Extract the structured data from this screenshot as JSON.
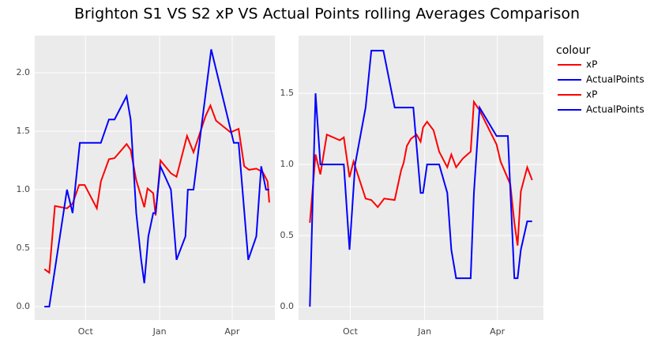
{
  "title": "Brighton S1 VS S2 xP VS Actual Points rolling Averages Comparison",
  "legend_title": "colour",
  "chart_data": [
    {
      "type": "line",
      "xlim": [
        -2,
        296
      ],
      "ylim": [
        -0.115,
        2.318
      ],
      "xticks": [
        {
          "value": 61,
          "label": "Oct"
        },
        {
          "value": 153,
          "label": "Jan"
        },
        {
          "value": 243,
          "label": "Apr"
        }
      ],
      "yticks": [
        {
          "value": 0,
          "label": "0.0"
        },
        0.5,
        {
          "value": 1,
          "label": "1.0"
        },
        1.5,
        {
          "value": 2,
          "label": "2.0"
        }
      ],
      "grid": true,
      "series": [
        {
          "name": "xP",
          "color": "#ff0000",
          "x": [
            10,
            16,
            23,
            38,
            45,
            53,
            60,
            75,
            80,
            90,
            97,
            112,
            117,
            124,
            134,
            138,
            145,
            148,
            154,
            167,
            174,
            187,
            195,
            210,
            216,
            223,
            241,
            251,
            258,
            264,
            273,
            281,
            287,
            289
          ],
          "values": [
            0.32,
            0.29,
            0.86,
            0.84,
            0.88,
            1.04,
            1.04,
            0.84,
            1.07,
            1.26,
            1.27,
            1.39,
            1.34,
            1.08,
            0.85,
            1.01,
            0.97,
            0.78,
            1.25,
            1.14,
            1.11,
            1.46,
            1.32,
            1.63,
            1.72,
            1.59,
            1.49,
            1.52,
            1.2,
            1.17,
            1.18,
            1.15,
            1.07,
            0.89
          ]
        },
        {
          "name": "ActualPoints",
          "color": "#0000ff",
          "x": [
            10,
            16,
            38,
            45,
            54,
            80,
            90,
            97,
            112,
            117,
            124,
            130,
            134,
            139,
            145,
            148,
            154,
            167,
            174,
            185,
            188,
            195,
            217,
            245,
            251,
            263,
            273,
            279,
            285,
            289
          ],
          "values": [
            0,
            0,
            1.0,
            0.8,
            1.4,
            1.4,
            1.6,
            1.6,
            1.8,
            1.6,
            0.8,
            0.4,
            0.2,
            0.6,
            0.8,
            0.8,
            1.2,
            1.0,
            0.4,
            0.6,
            1.0,
            1.0,
            2.2,
            1.4,
            1.4,
            0.4,
            0.6,
            1.2,
            1.0,
            1.0
          ]
        }
      ]
    },
    {
      "type": "line",
      "xlim": [
        -3,
        300
      ],
      "ylim": [
        -0.094,
        1.906
      ],
      "xticks": [
        {
          "value": 61,
          "label": "Oct"
        },
        {
          "value": 153,
          "label": "Jan"
        },
        {
          "value": 243,
          "label": "Apr"
        }
      ],
      "yticks": [
        {
          "value": 0,
          "label": "0.0"
        },
        0.5,
        {
          "value": 1,
          "label": "1.0"
        },
        1.5
      ],
      "grid": true,
      "series": [
        {
          "name": "xP",
          "color": "#ff0000",
          "x": [
            11,
            18,
            24,
            32,
            48,
            53,
            60,
            65,
            80,
            87,
            95,
            103,
            116,
            124,
            127,
            131,
            136,
            143,
            148,
            151,
            156,
            164,
            171,
            181,
            186,
            192,
            200,
            210,
            214,
            221,
            242,
            247,
            259,
            264,
            268,
            272,
            280,
            286
          ],
          "values": [
            0.59,
            1.07,
            0.93,
            1.21,
            1.17,
            1.19,
            0.91,
            1.02,
            0.76,
            0.75,
            0.7,
            0.76,
            0.75,
            0.96,
            1.01,
            1.13,
            1.18,
            1.21,
            1.16,
            1.26,
            1.3,
            1.24,
            1.09,
            0.98,
            1.07,
            0.98,
            1.04,
            1.09,
            1.44,
            1.38,
            1.14,
            1.02,
            0.86,
            0.59,
            0.43,
            0.81,
            0.98,
            0.89
          ]
        },
        {
          "name": "ActualPoints",
          "color": "#0000ff",
          "x": [
            11,
            18,
            24,
            50,
            53,
            60,
            67,
            80,
            87,
            102,
            116,
            139,
            148,
            151,
            156,
            171,
            181,
            186,
            192,
            210,
            214,
            221,
            242,
            256,
            264,
            268,
            272,
            280,
            286
          ],
          "values": [
            0,
            1.5,
            1.0,
            1.0,
            1.0,
            0.4,
            1.0,
            1.4,
            1.8,
            1.8,
            1.4,
            1.4,
            0.8,
            0.8,
            1.0,
            1.0,
            0.8,
            0.4,
            0.2,
            0.2,
            0.8,
            1.4,
            1.2,
            1.2,
            0.2,
            0.2,
            0.4,
            0.6,
            0.6
          ]
        }
      ]
    }
  ]
}
